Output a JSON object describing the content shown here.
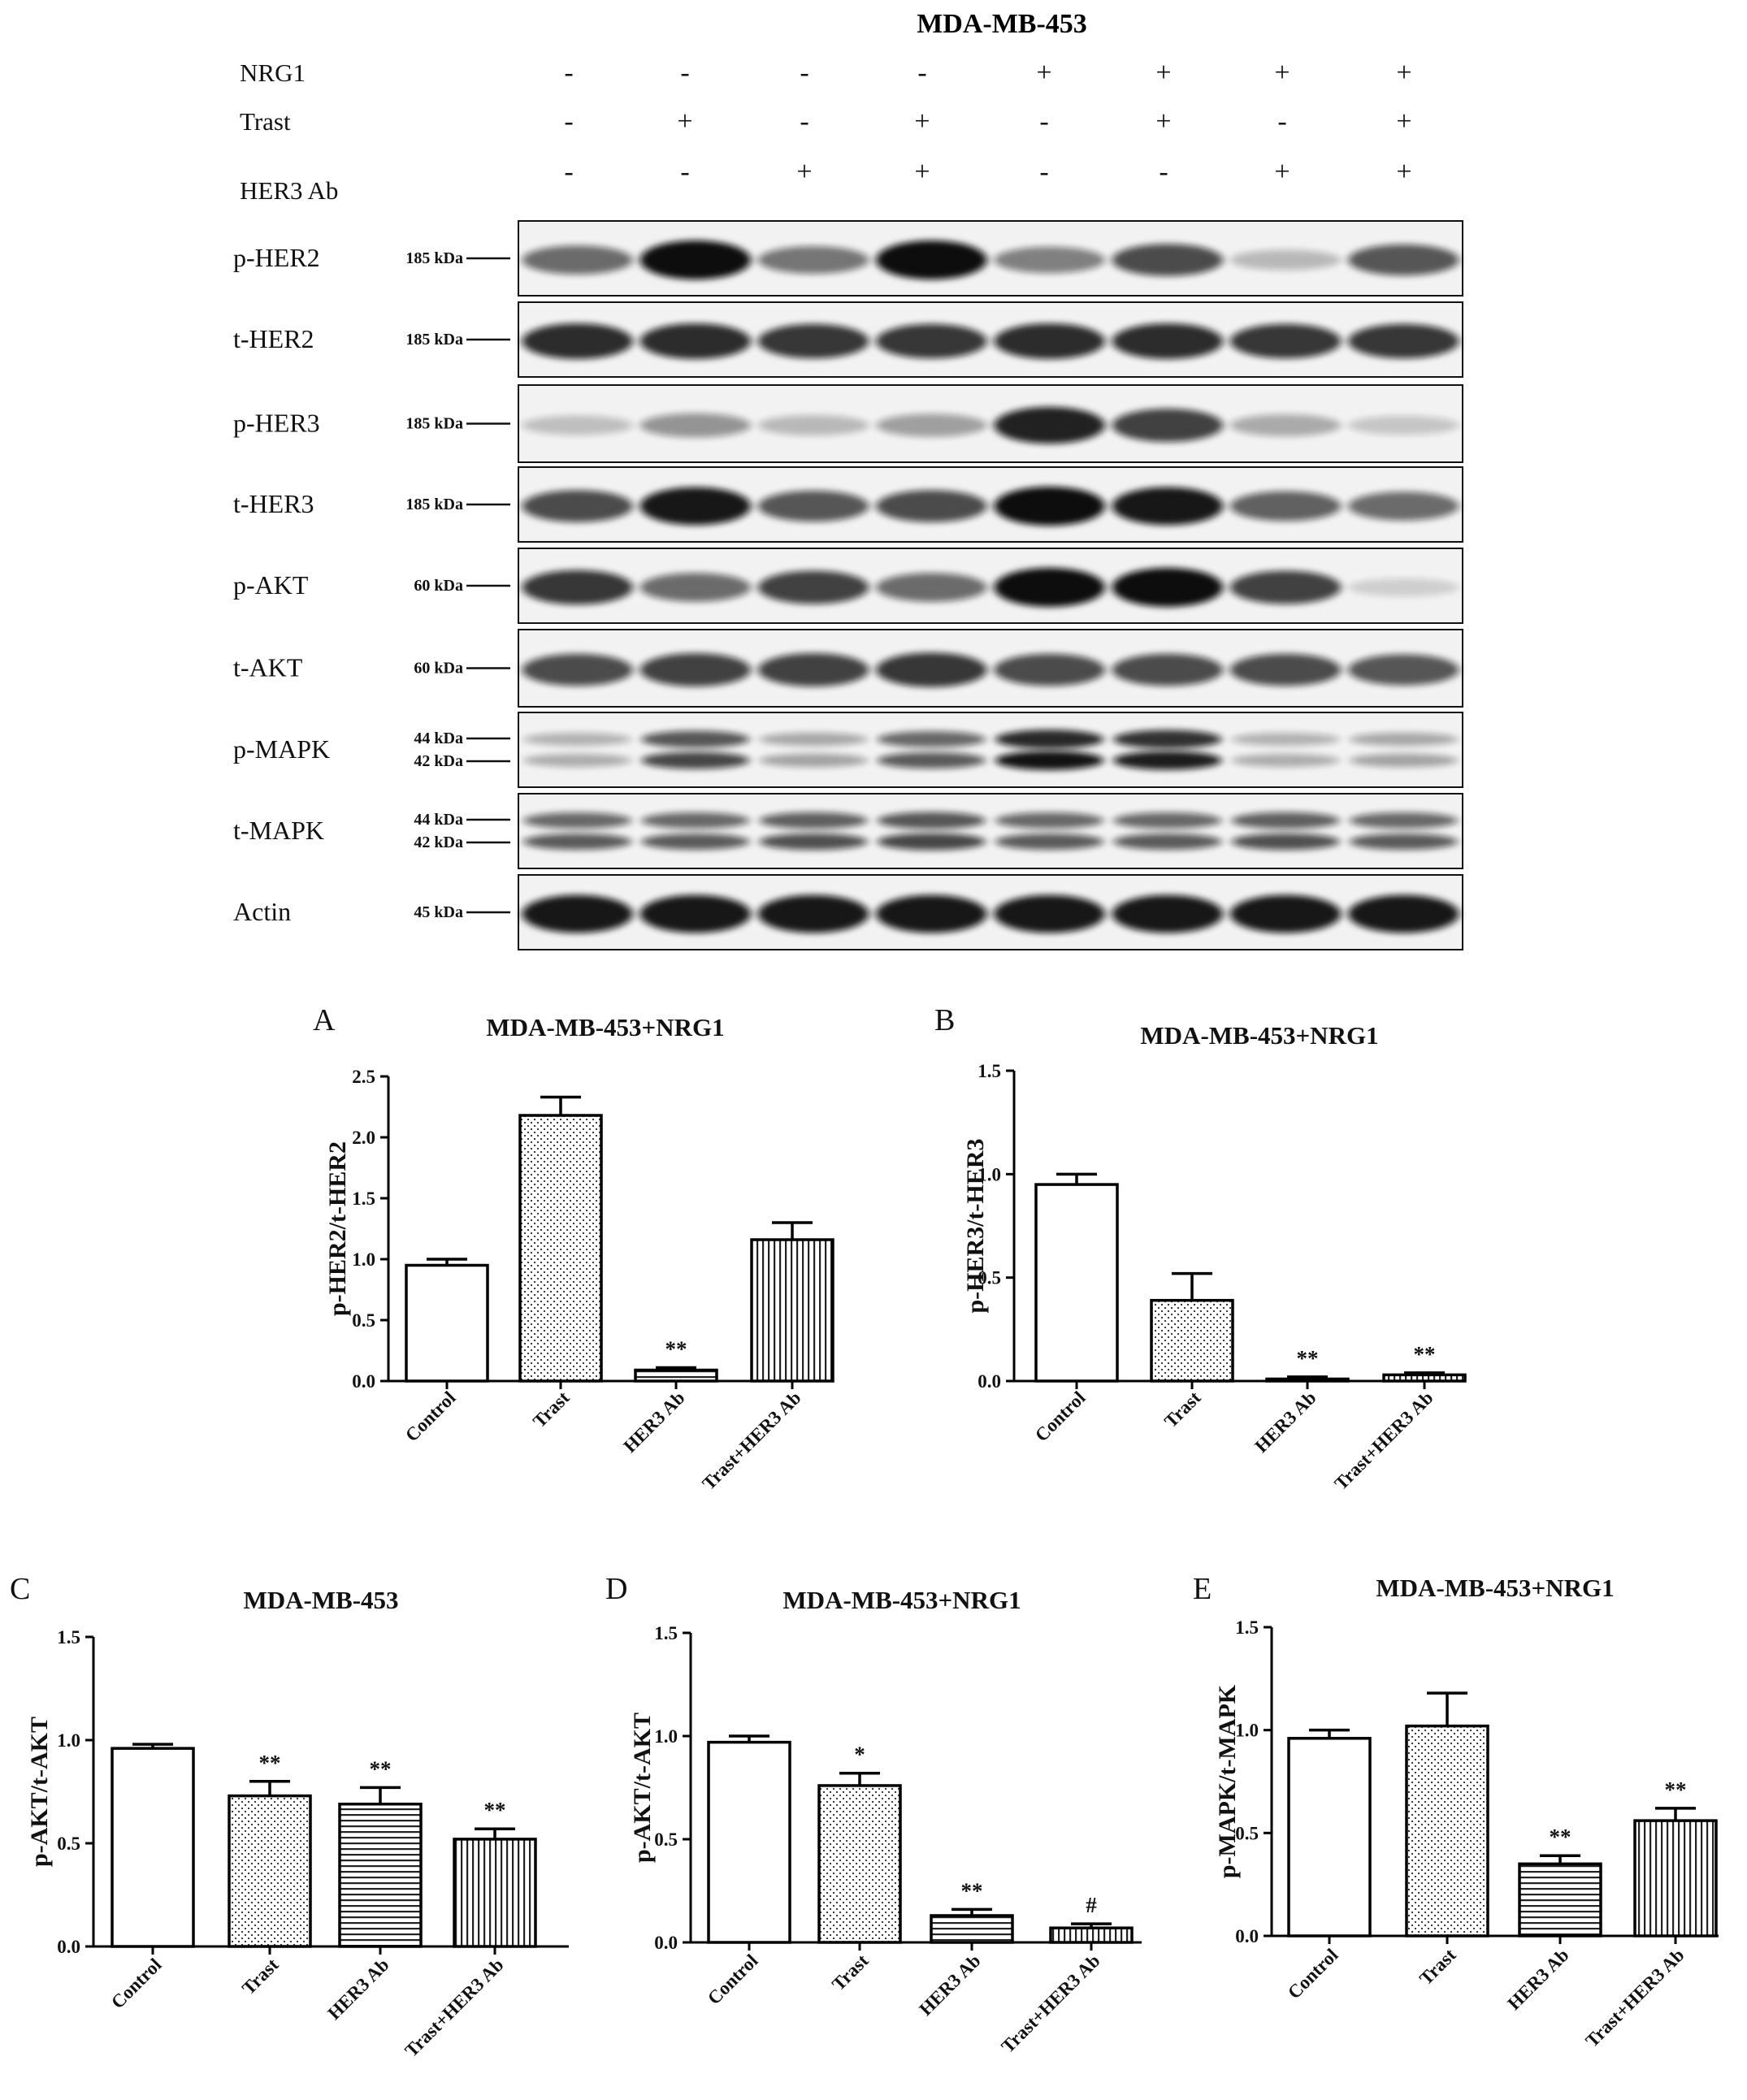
{
  "figure_title": "MDA-MB-453",
  "treatment_rows": [
    {
      "label": "NRG1",
      "signs": [
        "-",
        "-",
        "-",
        "-",
        "+",
        "+",
        "+",
        "+"
      ]
    },
    {
      "label": "Trast",
      "signs": [
        "-",
        "+",
        "-",
        "+",
        "-",
        "+",
        "-",
        "+"
      ]
    },
    {
      "label": "HER3 Ab",
      "signs": [
        "-",
        "-",
        "+",
        "+",
        "-",
        "-",
        "+",
        "+"
      ]
    }
  ],
  "blots": [
    {
      "name": "p-HER2",
      "markers": [
        "185 kDa"
      ],
      "intensity": [
        0.55,
        1.0,
        0.5,
        1.0,
        0.45,
        0.7,
        0.18,
        0.65
      ]
    },
    {
      "name": "t-HER2",
      "markers": [
        "185 kDa"
      ],
      "intensity": [
        0.85,
        0.85,
        0.8,
        0.8,
        0.85,
        0.85,
        0.8,
        0.8
      ]
    },
    {
      "name": "p-HER3",
      "markers": [
        "185 kDa"
      ],
      "intensity": [
        0.15,
        0.35,
        0.18,
        0.3,
        0.9,
        0.75,
        0.25,
        0.12
      ]
    },
    {
      "name": "t-HER3",
      "markers": [
        "185 kDa"
      ],
      "intensity": [
        0.7,
        0.95,
        0.65,
        0.7,
        1.0,
        0.95,
        0.6,
        0.55
      ]
    },
    {
      "name": "p-AKT",
      "markers": [
        "60 kDa"
      ],
      "intensity": [
        0.8,
        0.55,
        0.75,
        0.55,
        1.0,
        1.0,
        0.75,
        0.08
      ]
    },
    {
      "name": "t-AKT",
      "markers": [
        "60 kDa"
      ],
      "intensity": [
        0.7,
        0.75,
        0.75,
        0.8,
        0.7,
        0.7,
        0.7,
        0.65
      ]
    },
    {
      "name": "p-MAPK",
      "markers": [
        "44 kDa",
        "42 kDa"
      ],
      "intensity": [
        0.2,
        0.7,
        0.25,
        0.6,
        0.95,
        0.9,
        0.2,
        0.25
      ]
    },
    {
      "name": "t-MAPK",
      "markers": [
        "44 kDa",
        "42 kDa"
      ],
      "intensity": [
        0.6,
        0.6,
        0.65,
        0.7,
        0.6,
        0.6,
        0.65,
        0.6
      ]
    },
    {
      "name": "Actin",
      "markers": [
        "45 kDa"
      ],
      "intensity": [
        0.95,
        0.95,
        0.95,
        0.95,
        0.95,
        0.95,
        0.95,
        0.95
      ]
    }
  ],
  "colors": {
    "bar_stroke": "#000000",
    "band": "#111111",
    "membrane_bg": "#f2f2f2"
  },
  "chart_data": [
    {
      "panel": "A",
      "type": "bar",
      "title": "MDA-MB-453+NRG1",
      "ylabel": "p-HER2/t-HER2",
      "xlabel": "",
      "categories": [
        "Control",
        "Trast",
        "HER3 Ab",
        "Trast+HER3 Ab"
      ],
      "values": [
        0.95,
        2.18,
        0.09,
        1.16
      ],
      "errors": [
        0.05,
        0.15,
        0.02,
        0.14
      ],
      "annotations": [
        "",
        "",
        "**",
        ""
      ],
      "patterns": [
        "solid",
        "dots",
        "hlines",
        "vlines"
      ],
      "ylim": [
        0,
        2.5
      ],
      "yticks": [
        "0.0",
        "0.5",
        "1.0",
        "1.5",
        "2.0",
        "2.5"
      ],
      "ytick_values": [
        0,
        0.5,
        1,
        1.5,
        2,
        2.5
      ]
    },
    {
      "panel": "B",
      "type": "bar",
      "title": "MDA-MB-453+NRG1",
      "ylabel": "p-HER3/t-HER3",
      "xlabel": "",
      "categories": [
        "Control",
        "Trast",
        "HER3 Ab",
        "Trast+HER3 Ab"
      ],
      "values": [
        0.95,
        0.39,
        0.01,
        0.03
      ],
      "errors": [
        0.05,
        0.13,
        0.01,
        0.01
      ],
      "annotations": [
        "",
        "",
        "**",
        "**"
      ],
      "patterns": [
        "solid",
        "dots",
        "hlines",
        "vlines"
      ],
      "ylim": [
        0,
        1.5
      ],
      "yticks": [
        "0.0",
        "0.5",
        "1.0",
        "1.5"
      ],
      "ytick_values": [
        0,
        0.5,
        1,
        1.5
      ]
    },
    {
      "panel": "C",
      "type": "bar",
      "title": "MDA-MB-453",
      "ylabel": "p-AKT/t-AKT",
      "xlabel": "",
      "categories": [
        "Control",
        "Trast",
        "HER3 Ab",
        "Trast+HER3 Ab"
      ],
      "values": [
        0.96,
        0.73,
        0.69,
        0.52
      ],
      "errors": [
        0.02,
        0.07,
        0.08,
        0.05
      ],
      "annotations": [
        "",
        "**",
        "**",
        "**"
      ],
      "patterns": [
        "solid",
        "dots",
        "hlines",
        "vlines"
      ],
      "ylim": [
        0,
        1.5
      ],
      "yticks": [
        "0.0",
        "0.5",
        "1.0",
        "1.5"
      ],
      "ytick_values": [
        0,
        0.5,
        1,
        1.5
      ]
    },
    {
      "panel": "D",
      "type": "bar",
      "title": "MDA-MB-453+NRG1",
      "ylabel": "p-AKT/t-AKT",
      "xlabel": "",
      "categories": [
        "Control",
        "Trast",
        "HER3 Ab",
        "Trast+HER3 Ab"
      ],
      "values": [
        0.97,
        0.76,
        0.13,
        0.07
      ],
      "errors": [
        0.03,
        0.06,
        0.03,
        0.02
      ],
      "annotations": [
        "",
        "*",
        "**",
        "#"
      ],
      "patterns": [
        "solid",
        "dots",
        "hlines",
        "vlines"
      ],
      "ylim": [
        0,
        1.5
      ],
      "yticks": [
        "0.0",
        "0.5",
        "1.0",
        "1.5"
      ],
      "ytick_values": [
        0,
        0.5,
        1,
        1.5
      ]
    },
    {
      "panel": "E",
      "type": "bar",
      "title": "MDA-MB-453+NRG1",
      "ylabel": "p-MAPK/t-MAPK",
      "xlabel": "",
      "categories": [
        "Control",
        "Trast",
        "HER3 Ab",
        "Trast+HER3 Ab"
      ],
      "values": [
        0.96,
        1.02,
        0.35,
        0.56
      ],
      "errors": [
        0.04,
        0.16,
        0.04,
        0.06
      ],
      "annotations": [
        "",
        "",
        "**",
        "**"
      ],
      "patterns": [
        "solid",
        "dots",
        "hlines",
        "vlines"
      ],
      "ylim": [
        0,
        1.5
      ],
      "yticks": [
        "0.0",
        "0.5",
        "1.0",
        "1.5"
      ],
      "ytick_values": [
        0,
        0.5,
        1,
        1.5
      ]
    }
  ]
}
